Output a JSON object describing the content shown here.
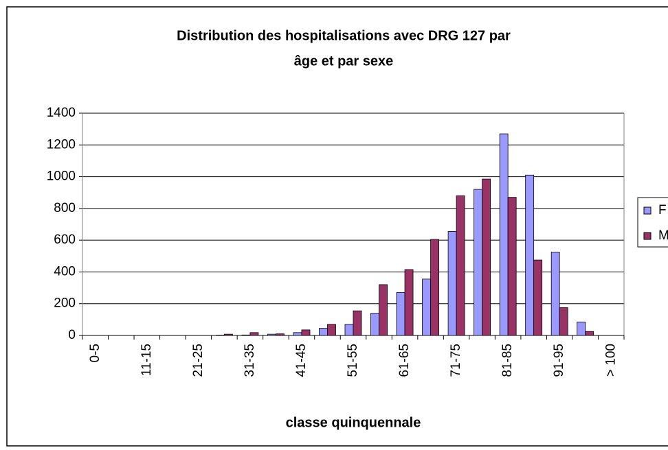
{
  "chart_data": {
    "type": "bar",
    "title": [
      "Distribution des hospitalisations  avec DRG 127 par",
      "âge et par sexe"
    ],
    "x_label": "classe quinquennale",
    "categories": [
      "0-5",
      null,
      "11-15",
      null,
      "21-25",
      null,
      "31-35",
      null,
      "41-45",
      null,
      "51-55",
      null,
      "61-65",
      null,
      "71-75",
      null,
      "81-85",
      null,
      "91-95",
      null,
      "> 100"
    ],
    "series": [
      {
        "name": "F",
        "color": "#9999ff",
        "values": [
          0,
          0,
          0,
          0,
          0,
          2,
          3,
          8,
          18,
          45,
          70,
          140,
          270,
          355,
          655,
          920,
          1270,
          1010,
          525,
          85,
          0
        ]
      },
      {
        "name": "M",
        "color": "#993366",
        "values": [
          0,
          0,
          0,
          0,
          0,
          8,
          18,
          10,
          35,
          70,
          155,
          320,
          415,
          605,
          880,
          985,
          870,
          475,
          175,
          25,
          0
        ]
      }
    ],
    "ylim": [
      0,
      1400
    ],
    "yticks": [
      0,
      200,
      400,
      600,
      800,
      1000,
      1200,
      1400
    ],
    "grid": true,
    "legend": "right"
  }
}
